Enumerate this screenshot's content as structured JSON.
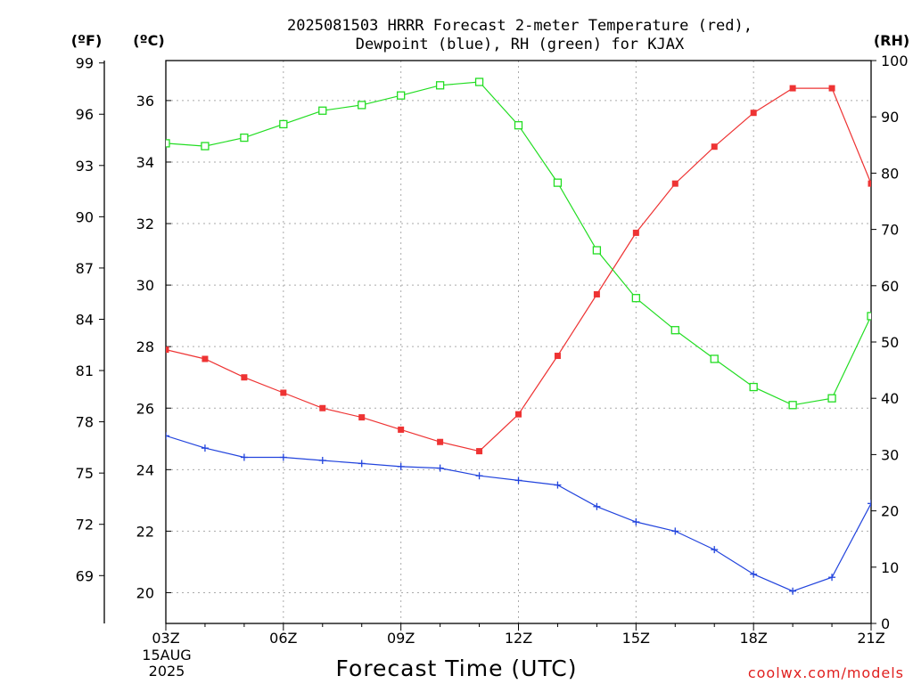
{
  "chart_data": {
    "type": "line",
    "title_lines": [
      "2025081503 HRRR Forecast 2-meter Temperature (red),",
      "Dewpoint (blue), RH (green) for KJAX"
    ],
    "xlabel": "Forecast Time (UTC)",
    "credit": "coolwx.com/models",
    "date_labels": [
      "15AUG",
      "2025"
    ],
    "unit_labels": {
      "fahrenheit": "(ºF)",
      "celsius": "(ºC)",
      "rh": "(RH)"
    },
    "x_hours": [
      3,
      4,
      5,
      6,
      7,
      8,
      9,
      10,
      11,
      12,
      13,
      14,
      15,
      16,
      17,
      18,
      19,
      20,
      21
    ],
    "x_ticks": [
      "03Z",
      "06Z",
      "09Z",
      "12Z",
      "15Z",
      "18Z",
      "21Z"
    ],
    "x_tick_hours": [
      3,
      6,
      9,
      12,
      15,
      18,
      21
    ],
    "ylim_celsius": [
      19,
      37.3
    ],
    "ylim_rh": [
      0,
      100
    ],
    "y_ticks_celsius": [
      "20",
      "22",
      "24",
      "26",
      "28",
      "30",
      "32",
      "34",
      "36"
    ],
    "y_ticks_fahrenheit": [
      "69",
      "72",
      "75",
      "78",
      "81",
      "84",
      "87",
      "90",
      "93",
      "96",
      "99"
    ],
    "y_ticks_rh": [
      "0",
      "10",
      "20",
      "30",
      "40",
      "50",
      "60",
      "70",
      "80",
      "90",
      "100"
    ],
    "grid": true,
    "series": [
      {
        "name": "Temperature",
        "axis": "celsius",
        "color": "#ee3333",
        "marker": "filled-square",
        "values": [
          27.9,
          27.6,
          27.0,
          26.5,
          26.0,
          25.7,
          25.3,
          24.9,
          24.6,
          25.8,
          27.7,
          29.7,
          31.7,
          33.3,
          34.5,
          35.6,
          36.4,
          36.4,
          33.3
        ]
      },
      {
        "name": "Dewpoint",
        "axis": "celsius",
        "color": "#2244dd",
        "marker": "plus",
        "values": [
          25.1,
          24.7,
          24.4,
          24.4,
          24.3,
          24.2,
          24.1,
          24.05,
          23.8,
          23.65,
          23.5,
          22.8,
          22.3,
          22.0,
          21.4,
          20.6,
          20.05,
          20.5,
          22.9
        ]
      },
      {
        "name": "RH",
        "axis": "rh",
        "color": "#22dd22",
        "marker": "open-square",
        "values": [
          85.3,
          84.8,
          86.3,
          88.7,
          91.1,
          92.1,
          93.8,
          95.6,
          96.2,
          88.5,
          78.3,
          66.3,
          57.8,
          52.1,
          47.0,
          42.0,
          38.8,
          40.0,
          54.6
        ]
      }
    ]
  }
}
